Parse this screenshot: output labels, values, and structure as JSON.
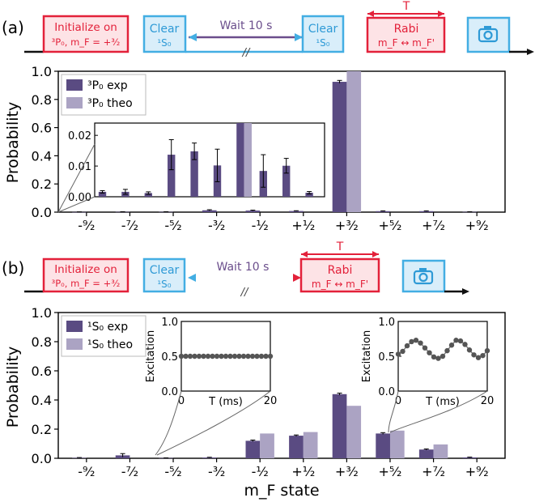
{
  "panel_a": {
    "label": "(a)",
    "sequence": {
      "init_line1": "Initialize on",
      "init_line2": "³P₀, m_F = +³⁄₂",
      "clear1_line1": "Clear",
      "clear1_line2": "¹S₀",
      "wait": "Wait 10 s",
      "clear2_line1": "Clear",
      "clear2_line2": "¹S₀",
      "rabi_T": "T",
      "rabi_line1": "Rabi",
      "rabi_line2": "m_F ↔ m_F'",
      "camera_icon": "camera-icon"
    }
  },
  "panel_b": {
    "label": "(b)",
    "sequence": {
      "init_line1": "Initialize on",
      "init_line2": "³P₀, m_F = +³⁄₂",
      "clear1_line1": "Clear",
      "clear1_line2": "¹S₀",
      "wait": "Wait 10 s",
      "rabi_T": "T",
      "rabi_line1": "Rabi",
      "rabi_line2": "m_F ↔ m_F'",
      "camera_icon": "camera-icon"
    }
  },
  "colors": {
    "exp": "#5a4b82",
    "theo": "#aba3c3",
    "red": "#e3213a",
    "blue": "#43aee3",
    "redfill": "#fde3e6",
    "bluefill": "#d9eefa"
  },
  "chart_data": [
    {
      "type": "bar",
      "panel": "(a)",
      "categories": [
        "-⁹⁄₂",
        "-⁷⁄₂",
        "-⁵⁄₂",
        "-³⁄₂",
        "-¹⁄₂",
        "+¹⁄₂",
        "+³⁄₂",
        "+⁵⁄₂",
        "+⁷⁄₂",
        "+⁹⁄₂"
      ],
      "ylabel": "Probability",
      "xlabel": "",
      "ylim": [
        0,
        1.0
      ],
      "yticks": [
        "0.0",
        "0.2",
        "0.4",
        "0.6",
        "0.8",
        "1.0"
      ],
      "series": [
        {
          "name": "³P₀ exp",
          "values": [
            0.001,
            0.002,
            0.002,
            0.013,
            0.011,
            0.008,
            0.925,
            0.007,
            0.007,
            0.002
          ],
          "errors": [
            0.001,
            0.001,
            0.001,
            0.004,
            0.003,
            0.002,
            0.01,
            0.002,
            0.002,
            0.001
          ]
        },
        {
          "name": "³P₀ theo",
          "values": [
            0,
            0,
            0,
            0,
            0,
            0,
            1.0,
            0,
            0,
            0
          ]
        }
      ],
      "inset": {
        "ylim": [
          0,
          0.024
        ],
        "yticks": [
          "0.00",
          "0.01",
          "0.02"
        ],
        "exp": [
          0.0016,
          0.0016,
          0.0012,
          0.0137,
          0.0148,
          0.0102,
          0.024,
          0.0084,
          0.0101,
          0.0013
        ],
        "err": [
          0.0004,
          0.0008,
          0.0004,
          0.0049,
          0.0027,
          0.0053,
          0,
          0.0053,
          0.0024,
          0.0004
        ],
        "theo": [
          0,
          0,
          0,
          0,
          0,
          0,
          0.024,
          0,
          0,
          0
        ]
      }
    },
    {
      "type": "bar",
      "panel": "(b)",
      "categories": [
        "-⁹⁄₂",
        "-⁷⁄₂",
        "-⁵⁄₂",
        "-³⁄₂",
        "-¹⁄₂",
        "+¹⁄₂",
        "+³⁄₂",
        "+⁵⁄₂",
        "+⁷⁄₂",
        "+⁹⁄₂"
      ],
      "ylabel": "Probability",
      "xlabel": "m_F state",
      "ylim": [
        0,
        1.0
      ],
      "yticks": [
        "0.0",
        "0.2",
        "0.4",
        "0.6",
        "0.8",
        "1.0"
      ],
      "series": [
        {
          "name": "¹S₀ exp",
          "values": [
            0.003,
            0.02,
            0.002,
            0.005,
            0.12,
            0.155,
            0.44,
            0.17,
            0.06,
            0.006
          ],
          "errors": [
            0.002,
            0.012,
            0.001,
            0.002,
            0.005,
            0.005,
            0.007,
            0.006,
            0.004,
            0.002
          ]
        },
        {
          "name": "¹S₀ theo",
          "values": [
            0,
            0,
            0,
            0,
            0.17,
            0.18,
            0.36,
            0.19,
            0.095,
            0
          ]
        }
      ],
      "insets": [
        {
          "type": "scatter",
          "ylabel": "Excitation",
          "xlabel": "T (ms)",
          "xlim": [
            0,
            20
          ],
          "ylim": [
            0,
            1.0
          ],
          "xticks": [
            "0",
            "20"
          ],
          "yticks": [
            "0.0",
            "0.5",
            "1.0"
          ],
          "x": [
            0,
            1,
            2,
            3,
            4,
            5,
            6,
            7,
            8,
            9,
            10,
            11,
            12,
            13,
            14,
            15,
            16,
            17,
            18,
            19,
            20
          ],
          "y": [
            0.5,
            0.5,
            0.5,
            0.5,
            0.5,
            0.5,
            0.5,
            0.5,
            0.5,
            0.5,
            0.5,
            0.5,
            0.5,
            0.5,
            0.5,
            0.5,
            0.5,
            0.5,
            0.5,
            0.5,
            0.5
          ]
        },
        {
          "type": "scatter",
          "ylabel": "Excitation",
          "xlabel": "T (ms)",
          "xlim": [
            0,
            20
          ],
          "ylim": [
            0,
            1.0
          ],
          "xticks": [
            "0",
            "20"
          ],
          "yticks": [
            "0.0",
            "0.5",
            "1.0"
          ],
          "x": [
            0,
            1,
            2,
            3,
            4,
            5,
            6,
            7,
            8,
            9,
            10,
            11,
            12,
            13,
            14,
            15,
            16,
            17,
            18,
            19,
            20
          ],
          "y": [
            0.53,
            0.57,
            0.65,
            0.71,
            0.73,
            0.69,
            0.62,
            0.55,
            0.49,
            0.47,
            0.5,
            0.58,
            0.66,
            0.73,
            0.72,
            0.67,
            0.59,
            0.52,
            0.48,
            0.51,
            0.58
          ]
        }
      ]
    }
  ]
}
